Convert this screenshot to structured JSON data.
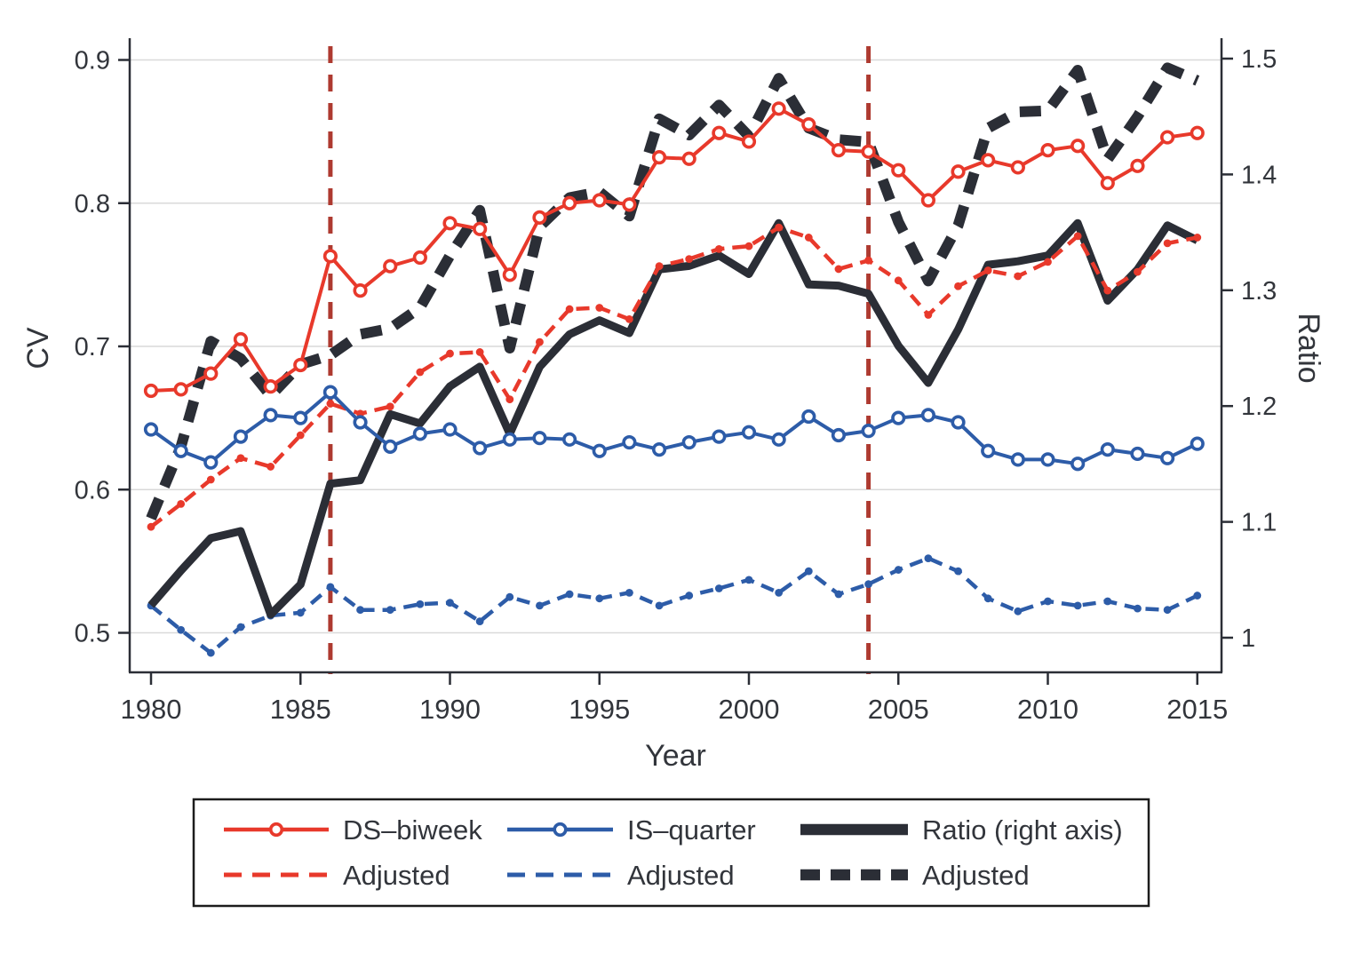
{
  "chart_data": {
    "type": "line",
    "title": "",
    "xlabel": "Year",
    "ylabel_left": "CV",
    "ylabel_right": "Ratio",
    "x_ticks": [
      1980,
      1985,
      1990,
      1995,
      2000,
      2005,
      2010,
      2015
    ],
    "y_left_ticks": [
      0.5,
      0.6,
      0.7,
      0.8,
      0.9
    ],
    "y_left_tick_labels": [
      "0.5",
      "0.6",
      "0.7",
      "0.8",
      "0.9"
    ],
    "y_right_ticks": [
      1.0,
      1.1,
      1.2,
      1.3,
      1.4,
      1.5
    ],
    "y_right_tick_labels": [
      "1",
      "1.1",
      "1.2",
      "1.3",
      "1.4",
      "1.5"
    ],
    "ylim_left": [
      0.5,
      0.9
    ],
    "ylim_right": [
      1.0,
      1.5
    ],
    "xlim": [
      1979.3,
      2015.8
    ],
    "grid": "horizontal",
    "vertical_reference_lines": {
      "years": [
        1986,
        2004
      ],
      "color": "#ae3a30",
      "style": "dashed"
    },
    "colors": {
      "red": "#e8392b",
      "blue": "#2d5ca8",
      "black": "#2b2e36",
      "grid": "#d9d9d9",
      "text": "#32353b",
      "vline": "#ae3a30"
    },
    "x": [
      1980,
      1981,
      1982,
      1983,
      1984,
      1985,
      1986,
      1987,
      1988,
      1989,
      1990,
      1991,
      1992,
      1993,
      1994,
      1995,
      1996,
      1997,
      1998,
      1999,
      2000,
      2001,
      2002,
      2003,
      2004,
      2005,
      2006,
      2007,
      2008,
      2009,
      2010,
      2011,
      2012,
      2013,
      2014,
      2015
    ],
    "series": [
      {
        "id": "is_adjusted",
        "label": "Adjusted",
        "axis": "left",
        "color": "#2d5ca8",
        "width": 4.5,
        "dash": [
          15,
          9
        ],
        "marker": "dot",
        "z": 1,
        "legend_row": 2,
        "legend_col": 2,
        "values": [
          0.519,
          0.502,
          0.486,
          0.504,
          0.512,
          0.514,
          0.532,
          0.516,
          0.516,
          0.52,
          0.521,
          0.508,
          0.525,
          0.519,
          0.527,
          0.524,
          0.528,
          0.519,
          0.526,
          0.531,
          0.537,
          0.528,
          0.543,
          0.527,
          0.534,
          0.544,
          0.552,
          0.543,
          0.524,
          0.515,
          0.522,
          0.519,
          0.522,
          0.517,
          0.516,
          0.526
        ]
      },
      {
        "id": "ratio_adjusted",
        "label": "Adjusted",
        "axis": "right",
        "color": "#2b2e36",
        "width": 12,
        "dash": [
          24,
          15
        ],
        "marker": null,
        "z": 2,
        "legend_row": 2,
        "legend_col": 3,
        "values": [
          1.103,
          1.165,
          1.256,
          1.241,
          1.209,
          1.236,
          1.244,
          1.262,
          1.267,
          1.285,
          1.33,
          1.369,
          1.25,
          1.355,
          1.38,
          1.385,
          1.364,
          1.448,
          1.434,
          1.46,
          1.433,
          1.483,
          1.44,
          1.43,
          1.428,
          1.359,
          1.308,
          1.356,
          1.44,
          1.454,
          1.455,
          1.49,
          1.413,
          1.45,
          1.492,
          1.481
        ]
      },
      {
        "id": "ratio",
        "label": "Ratio (right axis)",
        "axis": "right",
        "color": "#2b2e36",
        "width": 9,
        "dash": null,
        "marker": null,
        "z": 3,
        "legend_row": 1,
        "legend_col": 3,
        "values": [
          1.028,
          1.058,
          1.086,
          1.092,
          1.02,
          1.046,
          1.133,
          1.136,
          1.193,
          1.185,
          1.217,
          1.234,
          1.176,
          1.234,
          1.262,
          1.274,
          1.263,
          1.318,
          1.321,
          1.33,
          1.314,
          1.358,
          1.305,
          1.304,
          1.297,
          1.252,
          1.22,
          1.266,
          1.322,
          1.325,
          1.33,
          1.358,
          1.291,
          1.318,
          1.356,
          1.343
        ]
      },
      {
        "id": "ds_adjusted",
        "label": "Adjusted",
        "axis": "left",
        "color": "#e8392b",
        "width": 4.5,
        "dash": [
          15,
          9
        ],
        "marker": "dot",
        "z": 4,
        "legend_row": 2,
        "legend_col": 1,
        "values": [
          0.574,
          0.59,
          0.607,
          0.622,
          0.616,
          0.638,
          0.66,
          0.653,
          0.658,
          0.682,
          0.695,
          0.696,
          0.663,
          0.703,
          0.726,
          0.727,
          0.719,
          0.756,
          0.761,
          0.768,
          0.77,
          0.783,
          0.776,
          0.754,
          0.76,
          0.746,
          0.722,
          0.742,
          0.753,
          0.749,
          0.759,
          0.777,
          0.739,
          0.752,
          0.772,
          0.776
        ]
      },
      {
        "id": "is_quarter",
        "label": "IS–quarter",
        "axis": "left",
        "color": "#2d5ca8",
        "width": 4,
        "dash": null,
        "marker": "open-circle",
        "z": 5,
        "legend_row": 1,
        "legend_col": 2,
        "values": [
          0.642,
          0.627,
          0.619,
          0.637,
          0.652,
          0.65,
          0.668,
          0.647,
          0.63,
          0.639,
          0.642,
          0.629,
          0.635,
          0.636,
          0.635,
          0.627,
          0.633,
          0.628,
          0.633,
          0.637,
          0.64,
          0.635,
          0.651,
          0.638,
          0.641,
          0.65,
          0.652,
          0.647,
          0.627,
          0.621,
          0.621,
          0.618,
          0.628,
          0.625,
          0.622,
          0.632
        ]
      },
      {
        "id": "ds_biweek",
        "label": "DS–biweek",
        "axis": "left",
        "color": "#e8392b",
        "width": 4,
        "dash": null,
        "marker": "open-circle",
        "z": 6,
        "legend_row": 1,
        "legend_col": 1,
        "values": [
          0.669,
          0.67,
          0.681,
          0.705,
          0.672,
          0.687,
          0.763,
          0.739,
          0.756,
          0.762,
          0.786,
          0.782,
          0.75,
          0.79,
          0.8,
          0.802,
          0.799,
          0.832,
          0.831,
          0.849,
          0.843,
          0.866,
          0.855,
          0.837,
          0.836,
          0.823,
          0.802,
          0.822,
          0.83,
          0.825,
          0.837,
          0.84,
          0.814,
          0.826,
          0.846,
          0.849
        ]
      }
    ],
    "legend_position": "bottom"
  }
}
